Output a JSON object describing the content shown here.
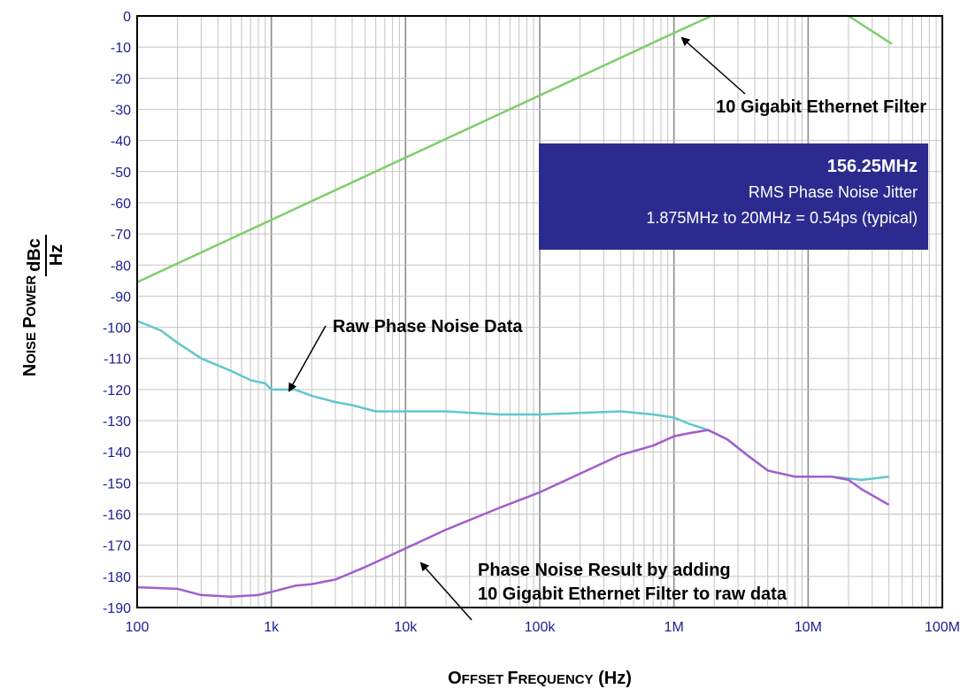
{
  "chart_data": {
    "type": "line",
    "xscale": "log",
    "xlim": [
      100,
      100000000
    ],
    "ylim": [
      -190,
      0
    ],
    "grid": true,
    "xlabel": {
      "first": "O",
      "rest1": "FFSET ",
      "second": "F",
      "rest2": "REQUENCY",
      "tail": " (Hz)"
    },
    "ylabel": {
      "first": "N",
      "rest1": "OISE ",
      "second": "P",
      "rest2": "OWER",
      "unit_num": "dBc",
      "unit_den": "Hz"
    },
    "x_ticks": [
      {
        "value": 100,
        "label": "100"
      },
      {
        "value": 1000,
        "label": "1k"
      },
      {
        "value": 10000,
        "label": "10k"
      },
      {
        "value": 100000,
        "label": "100k"
      },
      {
        "value": 1000000,
        "label": "1M"
      },
      {
        "value": 10000000,
        "label": "10M"
      },
      {
        "value": 100000000,
        "label": "100M"
      }
    ],
    "y_ticks": [
      {
        "value": 0,
        "label": "0"
      },
      {
        "value": -10,
        "label": "-10"
      },
      {
        "value": -20,
        "label": "-20"
      },
      {
        "value": -30,
        "label": "-30"
      },
      {
        "value": -40,
        "label": "-40"
      },
      {
        "value": -50,
        "label": "-50"
      },
      {
        "value": -60,
        "label": "-60"
      },
      {
        "value": -70,
        "label": "-70"
      },
      {
        "value": -80,
        "label": "-80"
      },
      {
        "value": -90,
        "label": "-90"
      },
      {
        "value": -100,
        "label": "-100"
      },
      {
        "value": -110,
        "label": "-110"
      },
      {
        "value": -120,
        "label": "-120"
      },
      {
        "value": -130,
        "label": "-130"
      },
      {
        "value": -140,
        "label": "-140"
      },
      {
        "value": -150,
        "label": "-150"
      },
      {
        "value": -160,
        "label": "-160"
      },
      {
        "value": -170,
        "label": "-170"
      },
      {
        "value": -180,
        "label": "-180"
      },
      {
        "value": -190,
        "label": "-190"
      }
    ],
    "series": [
      {
        "key": "filter",
        "color": "#7ccf6a",
        "points": [
          [
            100,
            -85.5
          ],
          [
            1000,
            -65.5
          ],
          [
            10000,
            -45.5
          ],
          [
            100000,
            -25.5
          ],
          [
            1000000,
            -5.5
          ],
          [
            1900000,
            0
          ],
          [
            10000000,
            0
          ],
          [
            20000000,
            0
          ],
          [
            42000000,
            -9
          ]
        ]
      },
      {
        "key": "raw",
        "color": "#5ec8cf",
        "points": [
          [
            100,
            -98
          ],
          [
            150,
            -101
          ],
          [
            200,
            -105
          ],
          [
            300,
            -110
          ],
          [
            500,
            -114
          ],
          [
            700,
            -117
          ],
          [
            900,
            -118
          ],
          [
            1000,
            -120
          ],
          [
            1500,
            -120
          ],
          [
            2000,
            -122
          ],
          [
            3000,
            -124
          ],
          [
            4000,
            -125
          ],
          [
            6000,
            -127
          ],
          [
            10000,
            -127
          ],
          [
            20000,
            -127
          ],
          [
            50000,
            -128
          ],
          [
            100000,
            -128
          ],
          [
            200000,
            -127.5
          ],
          [
            400000,
            -127
          ],
          [
            700000,
            -128
          ],
          [
            1000000,
            -129
          ],
          [
            1300000,
            -131
          ],
          [
            1800000,
            -133
          ],
          [
            2500000,
            -136
          ],
          [
            3500000,
            -141
          ],
          [
            5000000,
            -146
          ],
          [
            8000000,
            -148
          ],
          [
            15000000,
            -148
          ],
          [
            25000000,
            -149
          ],
          [
            40000000,
            -148
          ]
        ]
      },
      {
        "key": "result",
        "color": "#a35dcc",
        "points": [
          [
            100,
            -183.5
          ],
          [
            200,
            -184
          ],
          [
            300,
            -186
          ],
          [
            500,
            -186.5
          ],
          [
            800,
            -186
          ],
          [
            1000,
            -185
          ],
          [
            1500,
            -183
          ],
          [
            2000,
            -182.5
          ],
          [
            3000,
            -181
          ],
          [
            5000,
            -177
          ],
          [
            10000,
            -171
          ],
          [
            20000,
            -165
          ],
          [
            50000,
            -158
          ],
          [
            100000,
            -153
          ],
          [
            200000,
            -147
          ],
          [
            400000,
            -141
          ],
          [
            700000,
            -138
          ],
          [
            1000000,
            -135
          ],
          [
            1300000,
            -134
          ],
          [
            1800000,
            -133
          ],
          [
            2500000,
            -136
          ],
          [
            3500000,
            -141
          ],
          [
            5000000,
            -146
          ],
          [
            8000000,
            -148
          ],
          [
            15000000,
            -148
          ],
          [
            20000000,
            -149
          ],
          [
            25000000,
            -152
          ],
          [
            40000000,
            -157
          ]
        ]
      }
    ],
    "annotations": [
      {
        "key": "filter",
        "text": "10 Gigabit Ethernet Filter"
      },
      {
        "key": "raw",
        "text": "Raw Phase Noise Data"
      },
      {
        "key": "result",
        "lines": [
          "Phase Noise Result by adding",
          "10 Gigabit Ethernet Filter to raw data"
        ]
      }
    ],
    "info_box": {
      "title": "156.25MHz",
      "line1": "RMS Phase Noise Jitter",
      "line2": "1.875MHz to 20MHz = 0.54ps (typical)",
      "bg_color": "#2b2b8f"
    },
    "tick_color": "#1b1f8f"
  }
}
